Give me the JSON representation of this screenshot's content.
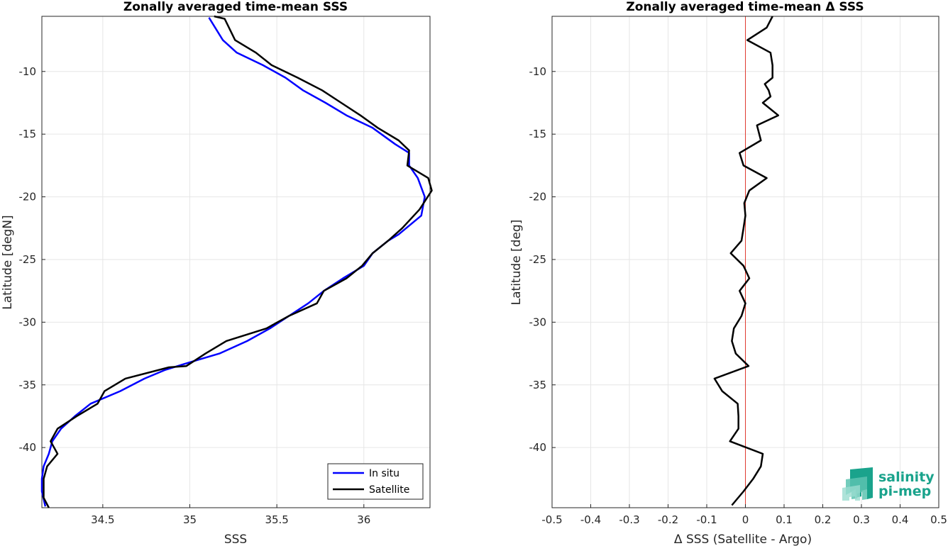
{
  "chart_data": [
    {
      "type": "line",
      "title": "Zonally averaged time-mean SSS",
      "xlabel": "SSS",
      "ylabel": "Latitude [degN]",
      "xlim": [
        34.15,
        36.38
      ],
      "ylim": [
        -44.8,
        -5.6
      ],
      "xticks": [
        34.5,
        35,
        35.5,
        36
      ],
      "xtick_labels": [
        "34.5",
        "35",
        "35.5",
        "36"
      ],
      "yticks": [
        -40,
        -35,
        -30,
        -25,
        -20,
        -15,
        -10
      ],
      "ytick_labels": [
        "-40",
        "-35",
        "-30",
        "-25",
        "-20",
        "-15",
        "-10"
      ],
      "grid": true,
      "legend": "bottom-right",
      "series": [
        {
          "name": "In situ",
          "color": "#0000ff",
          "points": [
            [
              35.11,
              -5.7
            ],
            [
              35.19,
              -7.5
            ],
            [
              35.27,
              -8.5
            ],
            [
              35.42,
              -9.5
            ],
            [
              35.55,
              -10.5
            ],
            [
              35.65,
              -11.5
            ],
            [
              35.78,
              -12.5
            ],
            [
              35.9,
              -13.5
            ],
            [
              36.05,
              -14.5
            ],
            [
              36.18,
              -15.8
            ],
            [
              36.26,
              -16.5
            ],
            [
              36.26,
              -17.5
            ],
            [
              36.31,
              -18.5
            ],
            [
              36.35,
              -20.0
            ],
            [
              36.33,
              -21.5
            ],
            [
              36.2,
              -23.0
            ],
            [
              36.14,
              -23.5
            ],
            [
              36.05,
              -24.5
            ],
            [
              36.0,
              -25.5
            ],
            [
              35.88,
              -26.5
            ],
            [
              35.77,
              -27.5
            ],
            [
              35.68,
              -28.5
            ],
            [
              35.57,
              -29.5
            ],
            [
              35.46,
              -30.5
            ],
            [
              35.33,
              -31.5
            ],
            [
              35.17,
              -32.5
            ],
            [
              35.0,
              -33.2
            ],
            [
              34.86,
              -33.8
            ],
            [
              34.74,
              -34.5
            ],
            [
              34.6,
              -35.5
            ],
            [
              34.43,
              -36.5
            ],
            [
              34.34,
              -37.5
            ],
            [
              34.26,
              -38.5
            ],
            [
              34.21,
              -39.5
            ],
            [
              34.19,
              -40.5
            ],
            [
              34.16,
              -41.5
            ],
            [
              34.15,
              -42.5
            ],
            [
              34.15,
              -43.5
            ],
            [
              34.17,
              -44.7
            ]
          ]
        },
        {
          "name": "Satellite",
          "color": "#000000",
          "points": [
            [
              35.14,
              -5.6
            ],
            [
              35.2,
              -5.8
            ],
            [
              35.26,
              -7.5
            ],
            [
              35.38,
              -8.5
            ],
            [
              35.47,
              -9.5
            ],
            [
              35.62,
              -10.5
            ],
            [
              35.76,
              -11.5
            ],
            [
              35.87,
              -12.5
            ],
            [
              35.98,
              -13.5
            ],
            [
              36.08,
              -14.5
            ],
            [
              36.2,
              -15.5
            ],
            [
              36.26,
              -16.3
            ],
            [
              36.25,
              -17.5
            ],
            [
              36.37,
              -18.5
            ],
            [
              36.39,
              -19.5
            ],
            [
              36.32,
              -21.0
            ],
            [
              36.22,
              -22.5
            ],
            [
              36.14,
              -23.5
            ],
            [
              36.05,
              -24.5
            ],
            [
              35.99,
              -25.5
            ],
            [
              35.9,
              -26.5
            ],
            [
              35.77,
              -27.5
            ],
            [
              35.73,
              -28.5
            ],
            [
              35.57,
              -29.5
            ],
            [
              35.44,
              -30.5
            ],
            [
              35.21,
              -31.5
            ],
            [
              35.09,
              -32.5
            ],
            [
              34.98,
              -33.5
            ],
            [
              34.88,
              -33.6
            ],
            [
              34.63,
              -34.5
            ],
            [
              34.51,
              -35.5
            ],
            [
              34.47,
              -36.5
            ],
            [
              34.35,
              -37.5
            ],
            [
              34.24,
              -38.5
            ],
            [
              34.2,
              -39.5
            ],
            [
              34.24,
              -40.5
            ],
            [
              34.18,
              -41.5
            ],
            [
              34.16,
              -42.5
            ],
            [
              34.16,
              -44.0
            ],
            [
              34.19,
              -44.8
            ]
          ]
        }
      ]
    },
    {
      "type": "line",
      "title": "Zonally averaged time-mean Δ SSS",
      "xlabel": "Δ SSS (Satellite - Argo)",
      "ylabel": "Latitude [deg]",
      "xlim": [
        -0.5,
        0.5
      ],
      "ylim": [
        -44.8,
        -5.6
      ],
      "xticks": [
        -0.5,
        -0.4,
        -0.3,
        -0.2,
        -0.1,
        0,
        0.1,
        0.2,
        0.3,
        0.4,
        0.5
      ],
      "xtick_labels": [
        "-0.5",
        "-0.4",
        "-0.3",
        "-0.2",
        "-0.1",
        "0",
        "0.1",
        "0.2",
        "0.3",
        "0.4",
        "0.5"
      ],
      "yticks": [
        -40,
        -35,
        -30,
        -25,
        -20,
        -15,
        -10
      ],
      "ytick_labels": [
        "-40",
        "-35",
        "-30",
        "-25",
        "-20",
        "-15",
        "-10"
      ],
      "grid": true,
      "zero_line_color": "#e03c31",
      "series": [
        {
          "color": "#000000",
          "points": [
            [
              0.07,
              -5.6
            ],
            [
              0.055,
              -6.5
            ],
            [
              0.005,
              -7.5
            ],
            [
              0.065,
              -8.5
            ],
            [
              0.07,
              -9.5
            ],
            [
              0.07,
              -10.5
            ],
            [
              0.05,
              -11.0
            ],
            [
              0.06,
              -11.5
            ],
            [
              0.065,
              -12.0
            ],
            [
              0.045,
              -12.5
            ],
            [
              0.085,
              -13.5
            ],
            [
              0.03,
              -14.3
            ],
            [
              0.04,
              -15.5
            ],
            [
              -0.015,
              -16.5
            ],
            [
              -0.005,
              -17.5
            ],
            [
              0.055,
              -18.5
            ],
            [
              0.01,
              -19.5
            ],
            [
              -0.003,
              -20.5
            ],
            [
              0.0,
              -21.5
            ],
            [
              -0.005,
              -22.5
            ],
            [
              -0.01,
              -23.5
            ],
            [
              -0.038,
              -24.5
            ],
            [
              -0.005,
              -25.5
            ],
            [
              0.01,
              -26.5
            ],
            [
              -0.015,
              -27.5
            ],
            [
              0.0,
              -28.5
            ],
            [
              -0.01,
              -29.5
            ],
            [
              -0.03,
              -30.5
            ],
            [
              -0.035,
              -31.5
            ],
            [
              -0.025,
              -32.5
            ],
            [
              0.008,
              -33.5
            ],
            [
              -0.08,
              -34.5
            ],
            [
              -0.06,
              -35.5
            ],
            [
              -0.02,
              -36.5
            ],
            [
              -0.018,
              -37.5
            ],
            [
              -0.018,
              -38.5
            ],
            [
              -0.04,
              -39.5
            ],
            [
              0.045,
              -40.5
            ],
            [
              0.04,
              -41.5
            ],
            [
              0.02,
              -42.5
            ],
            [
              -0.005,
              -43.5
            ],
            [
              -0.035,
              -44.6
            ]
          ]
        }
      ]
    }
  ],
  "logo": {
    "line1": "salinity",
    "line2": "pi-mep",
    "colors": [
      "#1aa38c",
      "#5cc3b0",
      "#9adccf"
    ]
  }
}
